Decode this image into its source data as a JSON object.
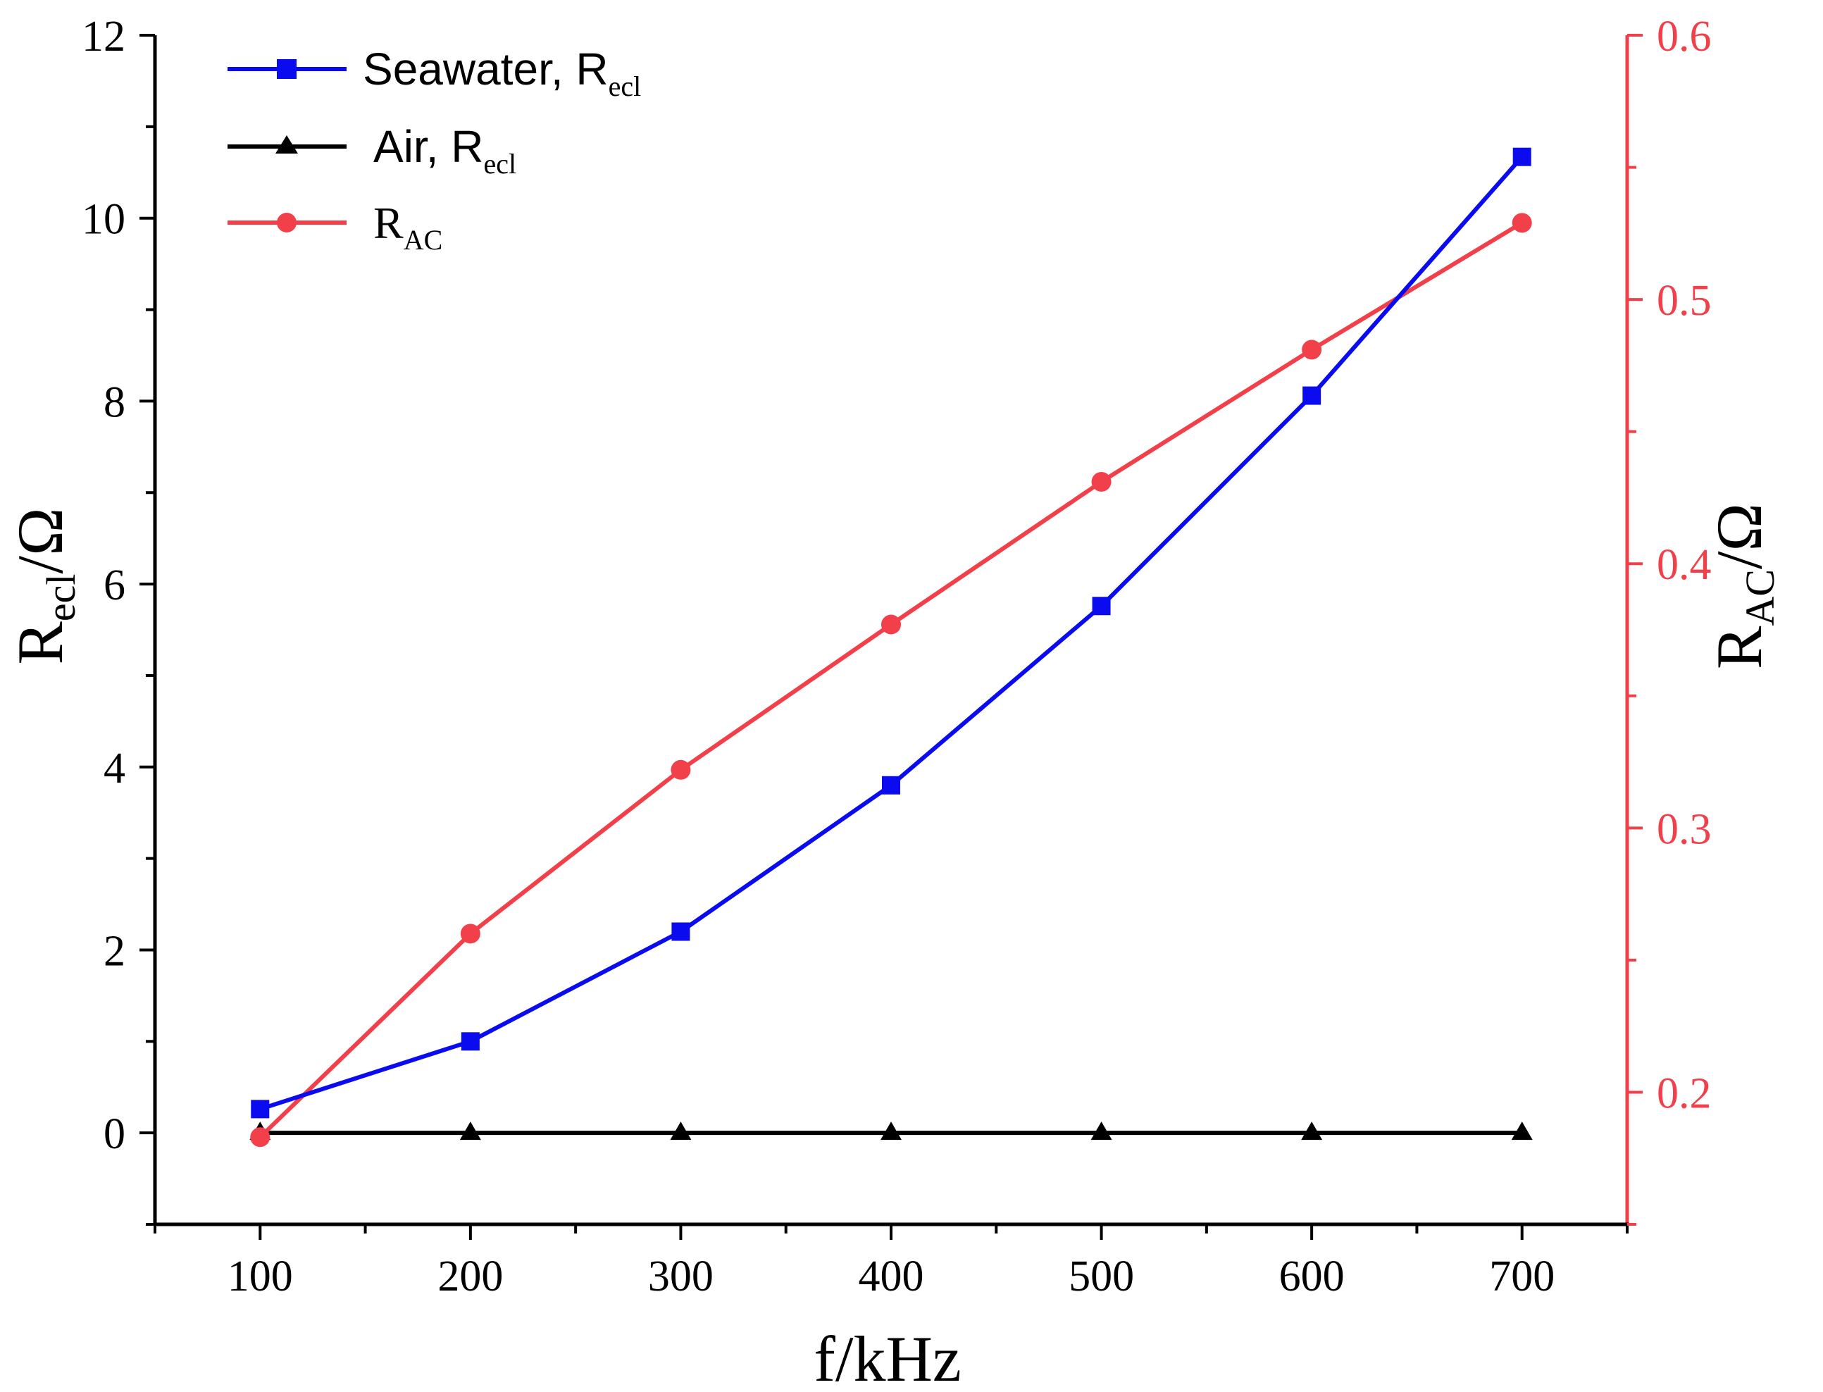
{
  "colors": {
    "seawater": "#0b0bf0",
    "air": "#000000",
    "rac": "#f2404b",
    "left_axis": "#000000",
    "right_axis": "#f2404b"
  },
  "chart_data": {
    "type": "line",
    "title": "",
    "xlabel": {
      "main": "f/kHz"
    },
    "ylabel_left": {
      "main": "R",
      "sub": "ecl",
      "unit": "/Ω"
    },
    "ylabel_right": {
      "main": "R",
      "sub": "AC",
      "unit": "/Ω"
    },
    "x": [
      100,
      200,
      300,
      400,
      500,
      600,
      700
    ],
    "xlim": [
      50,
      750
    ],
    "xticks": [
      100,
      200,
      300,
      400,
      500,
      600,
      700
    ],
    "xtick_labels": [
      "100",
      "200",
      "300",
      "400",
      "500",
      "600",
      "700"
    ],
    "ylim_left": [
      -1,
      12
    ],
    "yticks_left": [
      0,
      2,
      4,
      6,
      8,
      10,
      12
    ],
    "ytick_labels_left": [
      "0",
      "2",
      "4",
      "6",
      "8",
      "10",
      "12"
    ],
    "ylim_right": [
      0.15,
      0.6
    ],
    "yticks_right": [
      0.2,
      0.3,
      0.4,
      0.5,
      0.6
    ],
    "ytick_labels_right": [
      "0.2",
      "0.3",
      "0.4",
      "0.5",
      "0.6"
    ],
    "series": [
      {
        "name": "Seawater, R_ecl",
        "axis": "left",
        "marker": "square",
        "color_key": "seawater",
        "values": [
          0.26,
          1.0,
          2.2,
          3.8,
          5.76,
          8.06,
          10.67
        ]
      },
      {
        "name": "Air, R_ecl",
        "axis": "left",
        "marker": "triangle",
        "color_key": "air",
        "values": [
          0.0,
          0.0,
          0.0,
          0.0,
          0.0,
          0.0,
          0.0
        ]
      },
      {
        "name": "R_AC",
        "axis": "right",
        "marker": "circle",
        "color_key": "rac",
        "values": [
          0.183,
          0.26,
          0.322,
          0.377,
          0.431,
          0.481,
          0.529
        ]
      }
    ],
    "legend": [
      {
        "main": "Seawater, R",
        "sub": "ecl"
      },
      {
        "main": "Air, R",
        "sub": "ecl"
      },
      {
        "main": "R",
        "sub": "AC"
      }
    ],
    "legend_position": "top-left",
    "grid": false
  }
}
